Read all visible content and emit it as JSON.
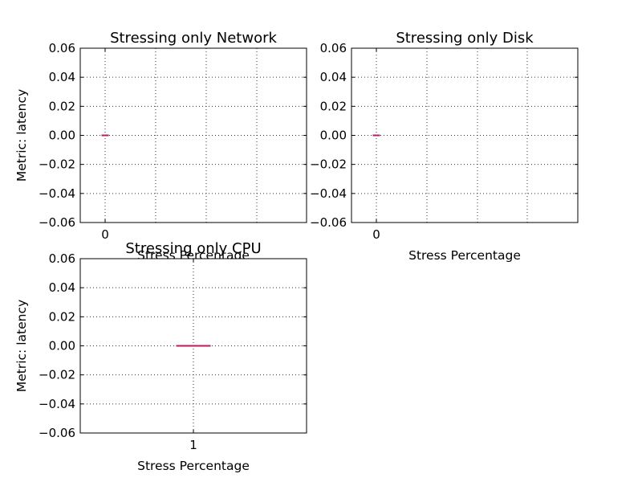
{
  "chart_data": [
    {
      "type": "box",
      "title": "Stressing only Network",
      "xlabel": "Stress Percentage",
      "ylabel": "Metric: latency",
      "ylim": [
        -0.06,
        0.06
      ],
      "yticks": [
        "0.06",
        "0.04",
        "0.02",
        "0.00",
        "−0.02",
        "−0.04",
        "−0.06"
      ],
      "categories": [
        "0"
      ],
      "values": [
        0.0
      ],
      "grid": true,
      "median_color": "#c2185b"
    },
    {
      "type": "box",
      "title": "Stressing only Disk",
      "xlabel": "Stress Percentage",
      "ylabel": "",
      "ylim": [
        -0.06,
        0.06
      ],
      "yticks": [
        "0.06",
        "0.04",
        "0.02",
        "0.00",
        "−0.02",
        "−0.04",
        "−0.06"
      ],
      "categories": [
        "0"
      ],
      "values": [
        0.0
      ],
      "grid": true,
      "median_color": "#c2185b"
    },
    {
      "type": "box",
      "title": "Stressing only CPU",
      "xlabel": "Stress Percentage",
      "ylabel": "Metric: latency",
      "ylim": [
        -0.06,
        0.06
      ],
      "yticks": [
        "0.06",
        "0.04",
        "0.02",
        "0.00",
        "−0.02",
        "−0.04",
        "−0.06"
      ],
      "categories": [
        "1"
      ],
      "values": [
        0.0
      ],
      "grid": true,
      "median_color": "#c2185b"
    }
  ]
}
